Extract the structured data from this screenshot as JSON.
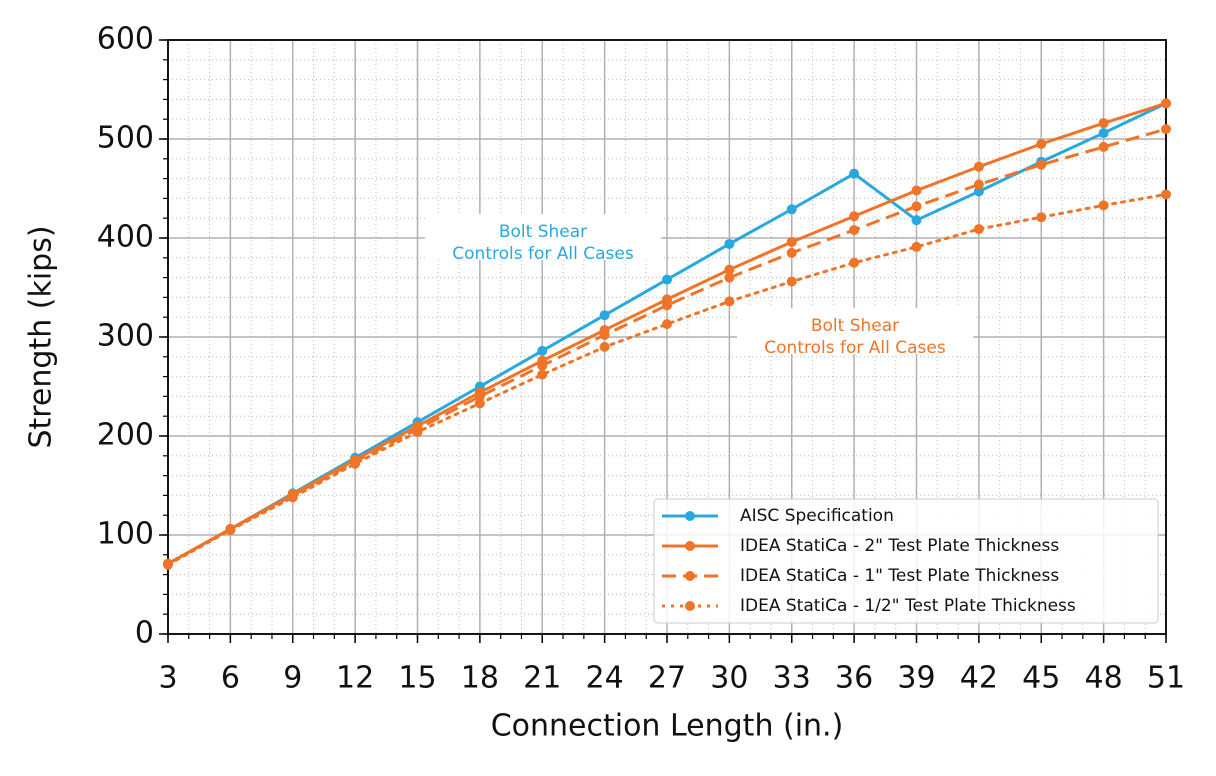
{
  "chart_data": {
    "type": "line",
    "x": [
      3,
      6,
      9,
      12,
      15,
      18,
      21,
      24,
      27,
      30,
      33,
      36,
      39,
      42,
      45,
      48,
      51
    ],
    "series": [
      {
        "name": "AISC Specification",
        "color": "#29a8e0",
        "linestyle": "solid",
        "values": [
          71,
          106,
          142,
          178,
          214,
          250,
          286,
          322,
          358,
          394,
          429,
          465,
          418,
          447,
          477,
          506,
          536
        ]
      },
      {
        "name": "IDEA StatiCa - 2\" Test Plate Thickness",
        "color": "#f07427",
        "linestyle": "solid",
        "values": [
          71,
          106,
          141,
          176,
          210,
          244,
          276,
          307,
          338,
          368,
          396,
          422,
          448,
          472,
          495,
          516,
          536
        ]
      },
      {
        "name": "IDEA StatiCa - 1\" Test Plate Thickness",
        "color": "#f07427",
        "linestyle": "dashed",
        "values": [
          71,
          106,
          140,
          174,
          207,
          240,
          271,
          302,
          332,
          360,
          385,
          408,
          432,
          454,
          474,
          492,
          510
        ]
      },
      {
        "name": "IDEA StatiCa - 1/2\" Test Plate Thickness",
        "color": "#f07427",
        "linestyle": "dotted",
        "values": [
          70,
          105,
          138,
          172,
          204,
          233,
          262,
          290,
          313,
          336,
          356,
          375,
          391,
          409,
          421,
          433,
          444
        ]
      }
    ],
    "xlabel": "Connection Length (in.)",
    "ylabel": "Strength (kips)",
    "xlim": [
      3,
      51
    ],
    "ylim": [
      0,
      600
    ],
    "xticks": [
      3,
      6,
      9,
      12,
      15,
      18,
      21,
      24,
      27,
      30,
      33,
      36,
      39,
      42,
      45,
      48,
      51
    ],
    "yticks": [
      0,
      100,
      200,
      300,
      400,
      500,
      600
    ],
    "grid": true,
    "minor_grid": {
      "x": 1,
      "y": 20
    },
    "legend": "lower right",
    "annotations": [
      {
        "text": [
          "Bolt Shear",
          "Controls for All Cases"
        ],
        "color": "#29a8e0"
      },
      {
        "text": [
          "Bolt Shear",
          "Controls for All Cases"
        ],
        "color": "#f07427"
      }
    ]
  }
}
